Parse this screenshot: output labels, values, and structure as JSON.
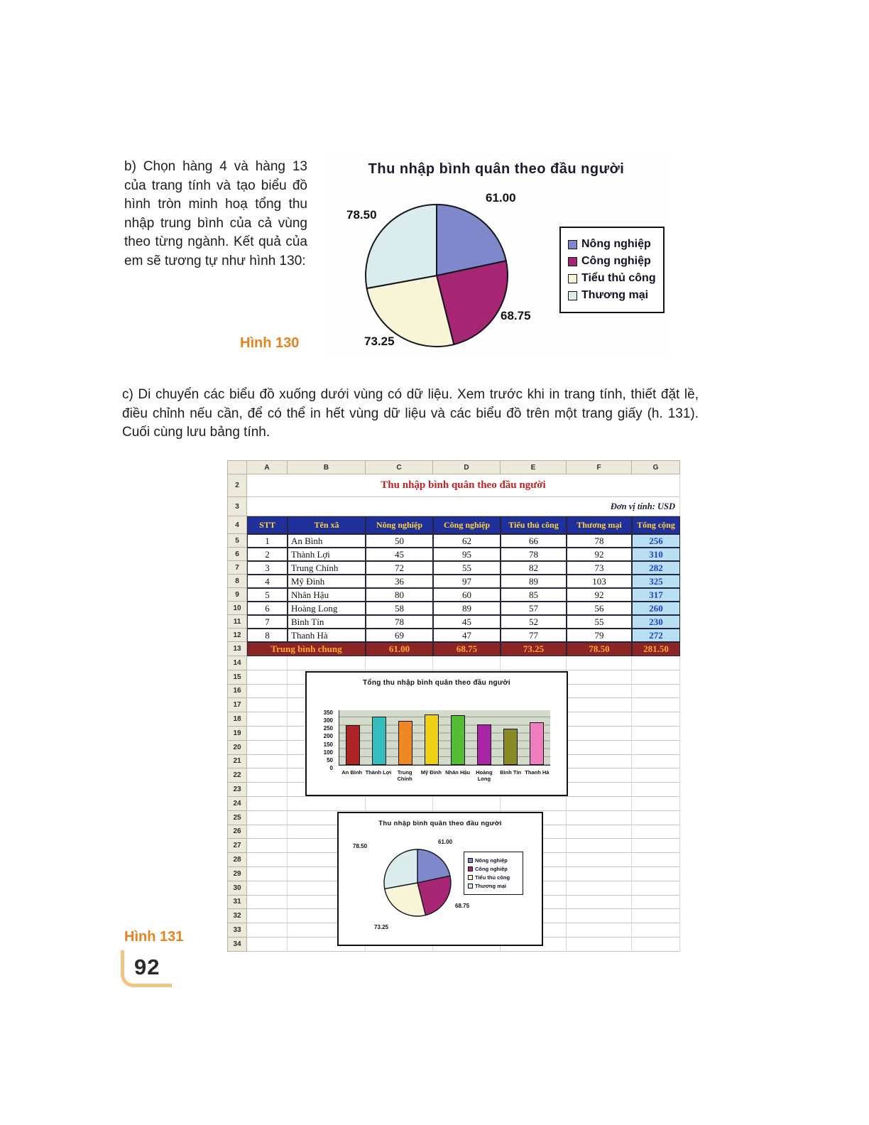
{
  "page": {
    "paragraph_b": "b) Chọn hàng 4 và hàng 13 của trang tính và tạo biểu đồ hình tròn minh hoạ tổng thu nhập trung bình của cả vùng theo từng ngành. Kết quả của em sẽ tương tự như hình 130:",
    "paragraph_c": "c) Di chuyển các biểu đồ xuống dưới vùng có dữ liệu. Xem trước khi in trang tính, thiết đặt lề, điều chỉnh nếu cần, để có thể in hết vùng dữ liệu và các biểu đồ trên một trang giấy (h. 131). Cuối cùng lưu bảng tính.",
    "figure130_caption": "Hình 130",
    "figure131_caption": "Hình 131",
    "page_number": "92"
  },
  "chart_data": [
    {
      "id": "pie-hinh-130",
      "type": "pie",
      "title": "Thu nhập bình quân theo đầu người",
      "labels": [
        "Nông nghiệp",
        "Công nghiệp",
        "Tiểu thủ công",
        "Thương mại"
      ],
      "values": [
        61.0,
        68.75,
        73.25,
        78.5
      ],
      "value_labels": [
        "61.00",
        "68.75",
        "73.25",
        "78.50"
      ],
      "colors": [
        "#7e88cb",
        "#a62673",
        "#f8f6d6",
        "#daeceb"
      ],
      "legend_position": "right"
    },
    {
      "id": "bar-hinh-131",
      "type": "bar",
      "title": "Tổng thu nhập bình quân theo đầu người",
      "categories": [
        "An Bình",
        "Thành Lợi",
        "Trung Chính",
        "Mỹ Đình",
        "Nhân Hậu",
        "Hoàng Long",
        "Bình Tín",
        "Thanh Hà"
      ],
      "values": [
        256,
        310,
        282,
        325,
        317,
        260,
        230,
        272
      ],
      "colors": [
        "#ab2525",
        "#35bdbd",
        "#ef8724",
        "#eecf14",
        "#56bb35",
        "#aa25a5",
        "#8b8b26",
        "#ef7ec0"
      ],
      "ylim": [
        0,
        350
      ],
      "yticks": [
        0,
        50,
        100,
        150,
        200,
        250,
        300,
        350
      ],
      "grid": true,
      "legend_position": "none"
    },
    {
      "id": "pie-hinh-131",
      "type": "pie",
      "title": "Thu nhập bình quân theo đầu người",
      "labels": [
        "Nông nghiệp",
        "Công nghiệp",
        "Tiểu thủ công",
        "Thương mại"
      ],
      "values": [
        61.0,
        68.75,
        73.25,
        78.5
      ],
      "value_labels": [
        "61.00",
        "68.75",
        "73.25",
        "78.50"
      ],
      "colors": [
        "#7e88cb",
        "#a62673",
        "#f8f6d6",
        "#daeceb"
      ],
      "legend_position": "right"
    }
  ],
  "spreadsheet": {
    "column_headers": [
      "A",
      "B",
      "C",
      "D",
      "E",
      "F",
      "G"
    ],
    "row_numbers": [
      2,
      3,
      4,
      5,
      6,
      7,
      8,
      9,
      10,
      11,
      12,
      13,
      14,
      15,
      16,
      17,
      18,
      19,
      20,
      21,
      22,
      23,
      24,
      25,
      26,
      27,
      28,
      29,
      30,
      31,
      32,
      33,
      34
    ],
    "title": "Thu nhập bình quân theo đầu người",
    "unit_note": "Đơn vị tính: USD",
    "table": {
      "headers": [
        "STT",
        "Tên xã",
        "Nông nghiệp",
        "Công nghiệp",
        "Tiểu thủ công",
        "Thương mại",
        "Tổng cộng"
      ],
      "rows": [
        [
          "1",
          "An Bình",
          "50",
          "62",
          "66",
          "78",
          "256"
        ],
        [
          "2",
          "Thành Lợi",
          "45",
          "95",
          "78",
          "92",
          "310"
        ],
        [
          "3",
          "Trung Chính",
          "72",
          "55",
          "82",
          "73",
          "282"
        ],
        [
          "4",
          "Mỹ Đình",
          "36",
          "97",
          "89",
          "103",
          "325"
        ],
        [
          "5",
          "Nhân Hậu",
          "80",
          "60",
          "85",
          "92",
          "317"
        ],
        [
          "6",
          "Hoàng Long",
          "58",
          "89",
          "57",
          "56",
          "260"
        ],
        [
          "7",
          "Bình Tín",
          "78",
          "45",
          "52",
          "55",
          "230"
        ],
        [
          "8",
          "Thanh Hà",
          "69",
          "47",
          "77",
          "79",
          "272"
        ]
      ],
      "summary": {
        "label": "Trung bình chung",
        "values": [
          "61.00",
          "68.75",
          "73.25",
          "78.50",
          "281.50"
        ]
      }
    }
  }
}
